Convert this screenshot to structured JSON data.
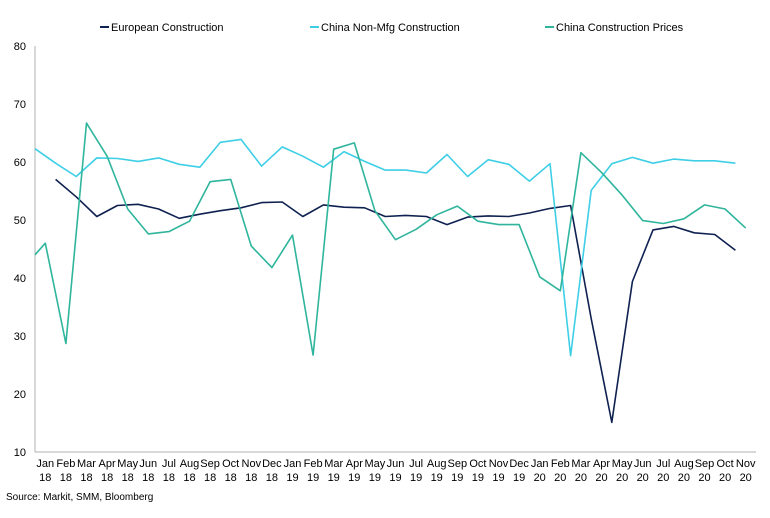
{
  "chart_data": {
    "type": "line",
    "title": "",
    "xlabel": "",
    "ylabel": "",
    "ylim": [
      10,
      80
    ],
    "yticks": [
      10,
      20,
      30,
      40,
      50,
      60,
      70,
      80
    ],
    "grid": false,
    "legend_position": "top",
    "categories": [
      [
        "Jan",
        "18"
      ],
      [
        "Feb",
        "18"
      ],
      [
        "Mar",
        "18"
      ],
      [
        "Apr",
        "18"
      ],
      [
        "May",
        "18"
      ],
      [
        "Jun",
        "18"
      ],
      [
        "Jul",
        "18"
      ],
      [
        "Aug",
        "18"
      ],
      [
        "Sep",
        "18"
      ],
      [
        "Oct",
        "18"
      ],
      [
        "Nov",
        "18"
      ],
      [
        "Dec",
        "18"
      ],
      [
        "Jan",
        "19"
      ],
      [
        "Feb",
        "19"
      ],
      [
        "Mar",
        "19"
      ],
      [
        "Apr",
        "19"
      ],
      [
        "May",
        "19"
      ],
      [
        "Jun",
        "19"
      ],
      [
        "Jul",
        "19"
      ],
      [
        "Aug",
        "19"
      ],
      [
        "Sep",
        "19"
      ],
      [
        "Oct",
        "19"
      ],
      [
        "Nov",
        "19"
      ],
      [
        "Dec",
        "19"
      ],
      [
        "Jan",
        "20"
      ],
      [
        "Feb",
        "20"
      ],
      [
        "Mar",
        "20"
      ],
      [
        "Apr",
        "20"
      ],
      [
        "May",
        "20"
      ],
      [
        "Jun",
        "20"
      ],
      [
        "Jul",
        "20"
      ],
      [
        "Aug",
        "20"
      ],
      [
        "Sep",
        "20"
      ],
      [
        "Oct",
        "20"
      ],
      [
        "Nov",
        "20"
      ]
    ],
    "x_start_offset": -0.5,
    "series": [
      {
        "name": "European Construction",
        "color": "#0f2150",
        "x": [
          0.5,
          1.5,
          2.5,
          3.5,
          4.5,
          5.5,
          6.5,
          7.5,
          8.5,
          9.5,
          10.5,
          11.5,
          12.5,
          13.5,
          14.5,
          15.5,
          16.5,
          17.5,
          18.5,
          19.5,
          20.5,
          21.5,
          22.5,
          23.5,
          24.5,
          25.5,
          26.5,
          27.5,
          28.5,
          29.5,
          30.5,
          31.5,
          32.5,
          33.5
        ],
        "values": [
          57.0,
          54.0,
          50.6,
          52.5,
          52.7,
          51.9,
          50.3,
          51.0,
          51.6,
          52.1,
          53.0,
          53.1,
          50.6,
          52.6,
          52.2,
          52.1,
          50.6,
          50.8,
          50.6,
          49.2,
          50.5,
          50.7,
          50.6,
          51.2,
          52.0,
          52.5,
          33.0,
          15.1,
          39.4,
          48.3,
          48.9,
          47.8,
          47.5,
          44.8
        ]
      },
      {
        "name": "China Non-Mfg Construction",
        "color": "#3ecfe6",
        "x": [
          -0.5,
          0.5,
          1.5,
          2.5,
          3.5,
          4.5,
          5.5,
          6.5,
          7.5,
          8.5,
          9.5,
          10.5,
          11.5,
          12.5,
          13.5,
          14.5,
          15.5,
          16.5,
          17.5,
          18.5,
          19.5,
          20.5,
          21.5,
          22.5,
          23.5,
          24.5,
          25.5,
          26.5,
          27.5,
          28.5,
          29.5,
          30.5,
          31.5,
          32.5,
          33.5
        ],
        "values": [
          62.3,
          59.8,
          57.5,
          60.7,
          60.6,
          60.1,
          60.7,
          59.6,
          59.1,
          63.4,
          63.9,
          59.3,
          62.6,
          61.0,
          59.1,
          61.8,
          60.1,
          58.6,
          58.6,
          58.1,
          61.3,
          57.5,
          60.4,
          59.6,
          56.7,
          59.7,
          26.6,
          55.1,
          59.7,
          60.8,
          59.8,
          60.5,
          60.2,
          60.2,
          59.8
        ]
      },
      {
        "name": "China Construction Prices",
        "color": "#2fb59c",
        "x": [
          -0.5,
          0.0,
          1.0,
          2.0,
          3.0,
          4.0,
          5.0,
          6.0,
          7.0,
          8.0,
          9.0,
          10.0,
          11.0,
          12.0,
          13.0,
          14.0,
          15.0,
          16.0,
          17.0,
          18.0,
          19.0,
          20.0,
          21.0,
          22.0,
          23.0,
          24.0,
          25.0,
          26.0,
          27.0,
          28.0,
          29.0,
          30.0,
          31.0,
          32.0,
          33.0,
          34.0
        ],
        "values": [
          44.0,
          46.0,
          28.7,
          66.7,
          61.0,
          51.9,
          47.6,
          48.0,
          49.8,
          56.6,
          57.0,
          45.5,
          41.8,
          47.4,
          26.7,
          62.2,
          63.3,
          51.6,
          46.6,
          48.4,
          50.9,
          52.4,
          49.8,
          49.2,
          49.2,
          40.2,
          37.8,
          61.6,
          58.2,
          54.3,
          49.9,
          49.4,
          50.2,
          52.6,
          51.9,
          48.6
        ]
      }
    ]
  },
  "source": "Source: Markit, SMM, Bloomberg"
}
